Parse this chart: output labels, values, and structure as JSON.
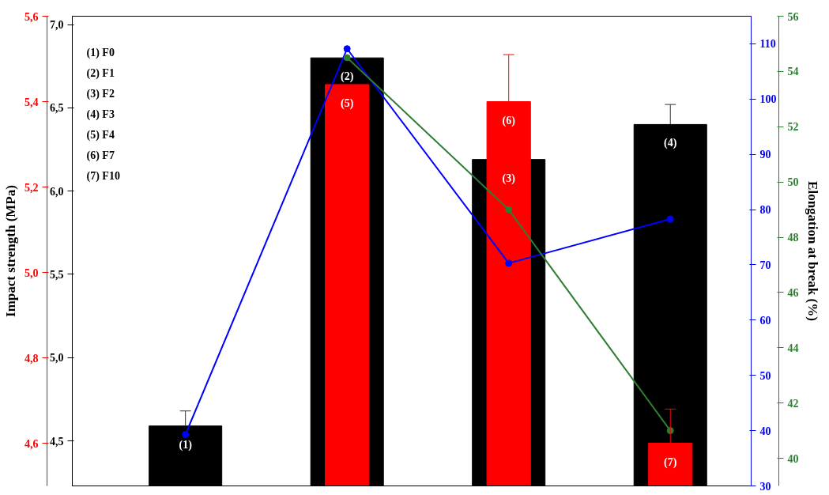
{
  "chart_data": [
    {
      "type": "bar",
      "categories": [
        null,
        null,
        null,
        null
      ],
      "ylabel": "Impact strength (MPa)",
      "y2lim": [
        4.23,
        7.05
      ],
      "y2ticks": [
        {
          "value": 4.5,
          "label": "4,5"
        },
        {
          "value": 5.0,
          "label": "5,0"
        },
        {
          "value": 5.5,
          "label": "5,5"
        },
        {
          "value": 6.0,
          "label": "6,0"
        },
        {
          "value": 6.5,
          "label": "6,5"
        },
        {
          "value": 7.0,
          "label": "7,0"
        }
      ],
      "ylim": [
        4.5,
        5.6
      ],
      "yticks": [
        {
          "value": 4.6,
          "label": "4,6"
        },
        {
          "value": 4.8,
          "label": "4,8"
        },
        {
          "value": 5.0,
          "label": "5,0"
        },
        {
          "value": 5.2,
          "label": "5,2"
        },
        {
          "value": 5.4,
          "label": "5,4"
        },
        {
          "value": 5.6,
          "label": "5,6"
        }
      ],
      "series": [
        {
          "axis": "y2",
          "color": "#000000",
          "values": [
            4.59,
            6.8,
            6.19,
            6.4
          ],
          "errors": [
            0.09,
            null,
            null,
            0.12
          ]
        },
        {
          "color": "#ff0000",
          "values": [
            null,
            5.44,
            5.4,
            4.6
          ],
          "errors": [
            null,
            null,
            0.11,
            0.08
          ]
        }
      ],
      "annotations": [
        "(1) F0",
        "(2) F1",
        "(3) F2",
        "(4) F3",
        "(5) F4",
        "(6) F7",
        "(7) F10",
        "(1)",
        "(2)",
        "(3)",
        "(4)",
        "(5)",
        "(6)",
        "(7)"
      ],
      "tick_labels": "y",
      "grid": false
    },
    {
      "type": "line",
      "categories": [
        null,
        null,
        null,
        null
      ],
      "y2label": "Elongation at break (%)",
      "ylim": [
        30,
        115
      ],
      "yticks": [
        30,
        40,
        50,
        60,
        70,
        80,
        90,
        100,
        110
      ],
      "y2lim": [
        39,
        56
      ],
      "y2ticks": [
        40,
        42,
        44,
        46,
        48,
        50,
        52,
        54,
        56
      ],
      "series": [
        {
          "color": "#0000ff",
          "values": [
            39.3,
            109.1,
            70.3,
            78.3
          ]
        },
        {
          "axis": "y2",
          "color": "#2e7d32",
          "values": [
            null,
            54.5,
            49.0,
            41.0
          ]
        }
      ],
      "marker": "circle",
      "tick_labels": "y",
      "grid": false
    }
  ]
}
